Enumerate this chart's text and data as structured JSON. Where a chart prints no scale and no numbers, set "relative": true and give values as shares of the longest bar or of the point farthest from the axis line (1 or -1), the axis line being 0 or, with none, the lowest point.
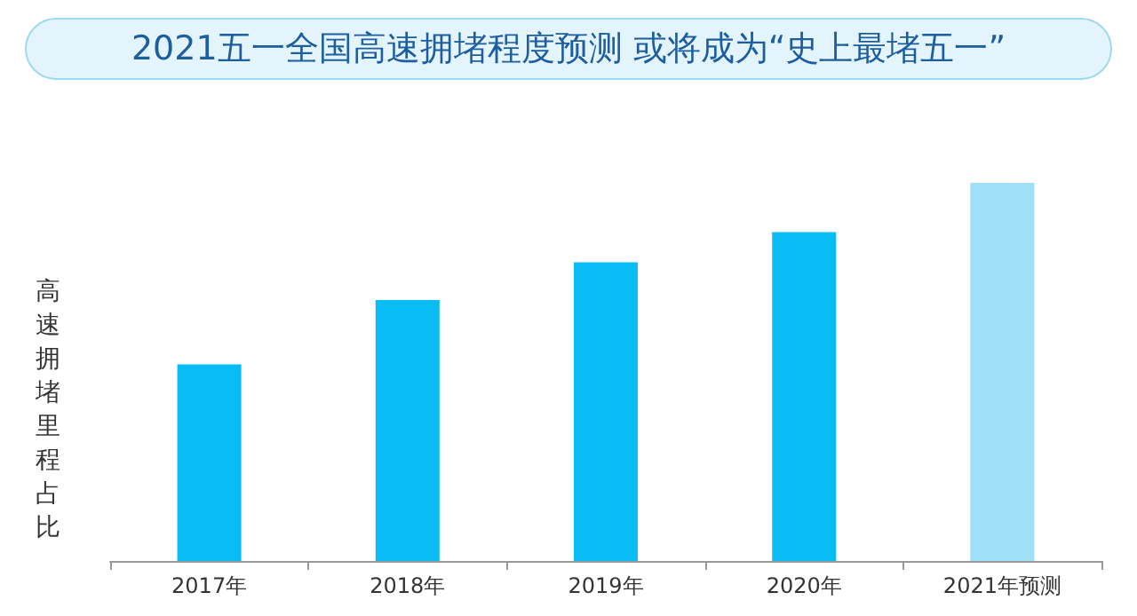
{
  "chart_data": {
    "type": "bar",
    "title": "2021五一全国高速拥堵程度预测 或将成为“史上最堵五一”",
    "ylabel": "高速拥堵里程占比",
    "relative": true,
    "categories": [
      "2017年",
      "2018年",
      "2019年",
      "2020年",
      "2021年预测"
    ],
    "values": [
      0.52,
      0.69,
      0.79,
      0.87,
      1
    ],
    "colors": [
      "#0abcf4",
      "#0abcf4",
      "#0abcf4",
      "#0abcf4",
      "#9fe0f8"
    ],
    "grid": false
  }
}
